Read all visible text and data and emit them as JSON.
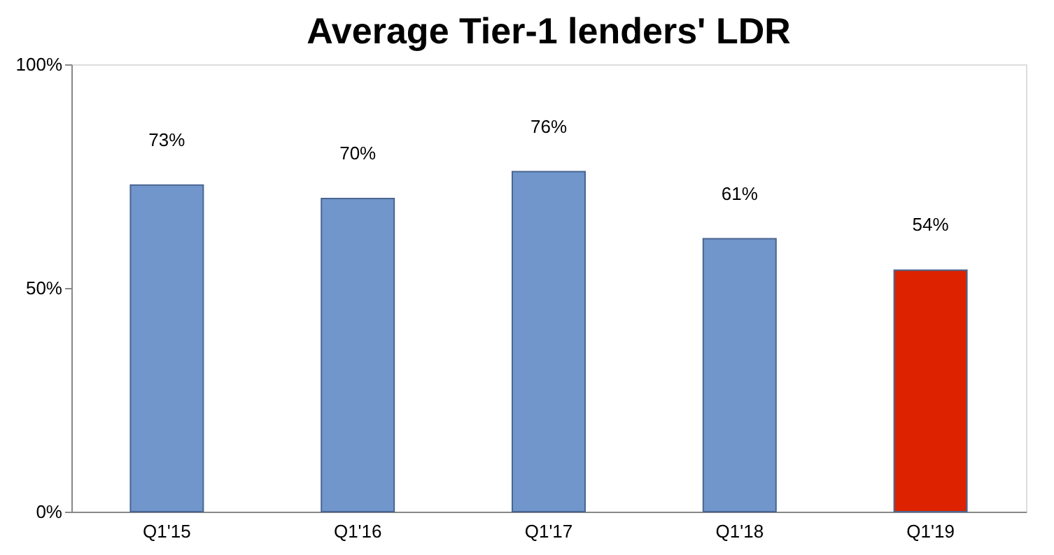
{
  "chart_data": {
    "type": "bar",
    "title": "Average Tier-1 lenders' LDR",
    "categories": [
      "Q1'15",
      "Q1'16",
      "Q1'17",
      "Q1'18",
      "Q1'19"
    ],
    "values": [
      73,
      70,
      76,
      61,
      54
    ],
    "colors": [
      "#7096cc",
      "#7096cc",
      "#7096cc",
      "#7096cc",
      "#dd2200"
    ],
    "value_labels": [
      "73%",
      "70%",
      "76%",
      "61%",
      "54%"
    ],
    "ylim": [
      0,
      100
    ],
    "yticks": [
      {
        "value": 0,
        "label": "0%"
      },
      {
        "value": 50,
        "label": "50%"
      },
      {
        "value": 100,
        "label": "100%"
      }
    ],
    "grid": false
  }
}
